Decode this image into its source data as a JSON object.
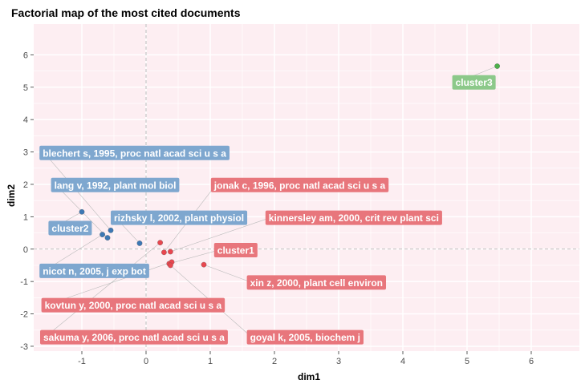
{
  "chart_data": {
    "type": "scatter",
    "title": "Factorial map of the most cited documents",
    "xlabel": "dim1",
    "ylabel": "dim2",
    "xlim": [
      -1.75,
      6.75
    ],
    "ylim": [
      -3.15,
      6.95
    ],
    "x_ticks": [
      -1,
      0,
      1,
      2,
      3,
      4,
      5,
      6
    ],
    "y_ticks": [
      -3,
      -2,
      -1,
      0,
      1,
      2,
      3,
      4,
      5,
      6
    ],
    "grid": true,
    "reference_lines": {
      "x": 0,
      "y": 0
    },
    "colors": {
      "panel_bg": "#fdeef2",
      "grid": "#ffffff",
      "cluster1": "#e8474f",
      "cluster1_label": "#e8767c",
      "cluster2": "#3c78b4",
      "cluster2_label": "#7ea7cf",
      "cluster3": "#4daf4a",
      "cluster3_label": "#8cc98a"
    },
    "clusters": [
      {
        "name": "cluster1",
        "color_key": "cluster1",
        "label_key": "cluster1_label",
        "points": [
          [
            0.22,
            0.2
          ],
          [
            0.28,
            -0.1
          ],
          [
            0.38,
            -0.08
          ],
          [
            0.36,
            -0.45
          ],
          [
            0.4,
            -0.4
          ],
          [
            0.38,
            -0.5
          ],
          [
            0.9,
            -0.48
          ]
        ]
      },
      {
        "name": "cluster2",
        "color_key": "cluster2",
        "label_key": "cluster2_label",
        "points": [
          [
            -1.0,
            1.15
          ],
          [
            -0.68,
            0.45
          ],
          [
            -0.6,
            0.35
          ],
          [
            -0.55,
            0.58
          ],
          [
            -0.1,
            0.18
          ]
        ]
      },
      {
        "name": "cluster3",
        "color_key": "cluster3",
        "label_key": "cluster3_label",
        "points": [
          [
            5.47,
            5.65
          ]
        ]
      }
    ],
    "labels": [
      {
        "text": "blechert s, 1995, proc natl acad sci u s a",
        "cluster": "cluster2",
        "x": -1.66,
        "y": 2.97,
        "px": -0.55,
        "py": 0.58
      },
      {
        "text": "lang v, 1992, plant mol biol",
        "cluster": "cluster2",
        "x": -1.48,
        "y": 1.98,
        "px": -0.6,
        "py": 0.35
      },
      {
        "text": "rizhsky l, 2002, plant physiol",
        "cluster": "cluster2",
        "x": -0.55,
        "y": 0.97,
        "px": -0.1,
        "py": 0.18
      },
      {
        "text": "cluster2",
        "cluster": "cluster2",
        "x": -1.52,
        "y": 0.65,
        "px": -1.0,
        "py": 1.15
      },
      {
        "text": "nicot n, 2005, j exp bot",
        "cluster": "cluster2",
        "x": -1.66,
        "y": -0.67,
        "px": -0.68,
        "py": 0.45
      },
      {
        "text": "jonak c, 1996, proc natl acad sci u s a",
        "cluster": "cluster1",
        "x": 1.01,
        "y": 1.98,
        "px": 0.28,
        "py": -0.1
      },
      {
        "text": "kinnersley am, 2000, crit rev plant sci",
        "cluster": "cluster1",
        "x": 1.86,
        "y": 0.97,
        "px": 0.38,
        "py": -0.08
      },
      {
        "text": "cluster1",
        "cluster": "cluster1",
        "x": 1.06,
        "y": -0.03,
        "px": 0.36,
        "py": -0.45
      },
      {
        "text": "xin z, 2000, plant cell environ",
        "cluster": "cluster1",
        "x": 1.57,
        "y": -1.03,
        "px": 0.9,
        "py": -0.48
      },
      {
        "text": "kovtun y, 2000, proc natl acad sci u s a",
        "cluster": "cluster1",
        "x": -1.63,
        "y": -1.73,
        "px": 0.4,
        "py": -0.4
      },
      {
        "text": "sakuma y, 2006, proc natl acad sci u s a",
        "cluster": "cluster1",
        "x": -1.65,
        "y": -2.72,
        "px": 0.22,
        "py": 0.2
      },
      {
        "text": "goyal k, 2005, biochem j",
        "cluster": "cluster1",
        "x": 1.57,
        "y": -2.72,
        "px": 0.38,
        "py": -0.5
      },
      {
        "text": "cluster3",
        "cluster": "cluster3",
        "x": 4.77,
        "y": 5.15,
        "px": 5.47,
        "py": 5.65
      }
    ]
  }
}
